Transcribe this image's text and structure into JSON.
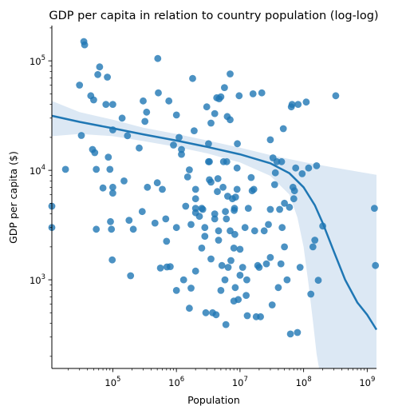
{
  "chart_data": {
    "type": "scatter",
    "title": "GDP per capita in relation to country population (log-log)",
    "xlabel": "Population",
    "ylabel": "GDP per capita ($)",
    "xscale": "log",
    "yscale": "log",
    "xlim": [
      11000,
      1400000000
    ],
    "ylim": [
      155,
      210000
    ],
    "grid": false,
    "point_color": "#1f77b4",
    "line_color": "#1f77b4",
    "band_color": "#dce8f4",
    "x_ticks": [
      {
        "base": "10",
        "exp": "5",
        "value": 100000
      },
      {
        "base": "10",
        "exp": "6",
        "value": 1000000
      },
      {
        "base": "10",
        "exp": "7",
        "value": 10000000
      },
      {
        "base": "10",
        "exp": "8",
        "value": 100000000
      },
      {
        "base": "10",
        "exp": "9",
        "value": 1000000000
      }
    ],
    "y_ticks": [
      {
        "base": "10",
        "exp": "3",
        "value": 1000
      },
      {
        "base": "10",
        "exp": "4",
        "value": 10000
      },
      {
        "base": "10",
        "exp": "5",
        "value": 100000
      }
    ],
    "points": [
      [
        11000,
        3000
      ],
      [
        11000,
        4700
      ],
      [
        18000,
        10200
      ],
      [
        30000,
        60000
      ],
      [
        32000,
        20800
      ],
      [
        35000,
        150000
      ],
      [
        36000,
        140000
      ],
      [
        45000,
        48000
      ],
      [
        48000,
        15500
      ],
      [
        50000,
        44000
      ],
      [
        52000,
        14500
      ],
      [
        55000,
        10200
      ],
      [
        55000,
        2900
      ],
      [
        58000,
        75000
      ],
      [
        62000,
        88000
      ],
      [
        70000,
        6900
      ],
      [
        78000,
        40000
      ],
      [
        82000,
        71000
      ],
      [
        85000,
        13200
      ],
      [
        90000,
        10200
      ],
      [
        92000,
        3400
      ],
      [
        95000,
        2900
      ],
      [
        98000,
        1520
      ],
      [
        100000,
        7000
      ],
      [
        100000,
        6200
      ],
      [
        100000,
        23400
      ],
      [
        100000,
        40000
      ],
      [
        140000,
        30000
      ],
      [
        150000,
        8000
      ],
      [
        170000,
        20700
      ],
      [
        180000,
        3500
      ],
      [
        190000,
        1090
      ],
      [
        210000,
        2900
      ],
      [
        260000,
        16000
      ],
      [
        290000,
        4200
      ],
      [
        300000,
        43000
      ],
      [
        320000,
        28000
      ],
      [
        340000,
        34000
      ],
      [
        350000,
        7000
      ],
      [
        460000,
        3300
      ],
      [
        500000,
        7700
      ],
      [
        510000,
        105000
      ],
      [
        520000,
        51000
      ],
      [
        560000,
        1280
      ],
      [
        600000,
        6700
      ],
      [
        680000,
        3600
      ],
      [
        700000,
        2250
      ],
      [
        710000,
        1310
      ],
      [
        760000,
        43000
      ],
      [
        800000,
        1320
      ],
      [
        900000,
        17000
      ],
      [
        1000000,
        32000
      ],
      [
        1000000,
        3000
      ],
      [
        1000000,
        800
      ],
      [
        1100000,
        20000
      ],
      [
        1200000,
        14000
      ],
      [
        1200000,
        15500
      ],
      [
        1300000,
        1000
      ],
      [
        1400000,
        4700
      ],
      [
        1500000,
        8700
      ],
      [
        1600000,
        550
      ],
      [
        1600000,
        10100
      ],
      [
        1700000,
        3200
      ],
      [
        1700000,
        840
      ],
      [
        1800000,
        69000
      ],
      [
        1900000,
        23000
      ],
      [
        2000000,
        4100
      ],
      [
        2000000,
        4500
      ],
      [
        2000000,
        6700
      ],
      [
        2000000,
        5500
      ],
      [
        2000000,
        1200
      ],
      [
        2300000,
        3800
      ],
      [
        2500000,
        1950
      ],
      [
        2500000,
        4500
      ],
      [
        2600000,
        4400
      ],
      [
        2800000,
        3000
      ],
      [
        2800000,
        2500
      ],
      [
        2900000,
        500
      ],
      [
        3000000,
        38000
      ],
      [
        3200000,
        12000
      ],
      [
        3200000,
        17500
      ],
      [
        3300000,
        12000
      ],
      [
        3300000,
        8200
      ],
      [
        3500000,
        1550
      ],
      [
        3500000,
        7800
      ],
      [
        3500000,
        27000
      ],
      [
        3700000,
        500
      ],
      [
        4000000,
        3600
      ],
      [
        4000000,
        33000
      ],
      [
        4000000,
        4000
      ],
      [
        4200000,
        480
      ],
      [
        4300000,
        46000
      ],
      [
        4400000,
        6400
      ],
      [
        4500000,
        8400
      ],
      [
        4600000,
        2800
      ],
      [
        4600000,
        2300
      ],
      [
        4700000,
        45000
      ],
      [
        5000000,
        47000
      ],
      [
        5000000,
        800
      ],
      [
        5200000,
        1350
      ],
      [
        5400000,
        7000
      ],
      [
        5500000,
        12000
      ],
      [
        5700000,
        57000
      ],
      [
        5800000,
        1000
      ],
      [
        5900000,
        4200
      ],
      [
        6000000,
        390
      ],
      [
        6100000,
        3600
      ],
      [
        6200000,
        12000
      ],
      [
        6300000,
        31000
      ],
      [
        6400000,
        5800
      ],
      [
        6500000,
        1300
      ],
      [
        7000000,
        29000
      ],
      [
        7000000,
        76000
      ],
      [
        7000000,
        2800
      ],
      [
        7200000,
        1500
      ],
      [
        7600000,
        5500
      ],
      [
        8000000,
        1950
      ],
      [
        8000000,
        640
      ],
      [
        8100000,
        4300
      ],
      [
        8200000,
        4500
      ],
      [
        8300000,
        2600
      ],
      [
        8400000,
        850
      ],
      [
        8500000,
        5700
      ],
      [
        9000000,
        10500
      ],
      [
        9000000,
        6700
      ],
      [
        9100000,
        17500
      ],
      [
        9400000,
        660
      ],
      [
        9700000,
        48000
      ],
      [
        10000000,
        1900
      ],
      [
        10000000,
        1100
      ],
      [
        11000000,
        1300
      ],
      [
        12000000,
        3000
      ],
      [
        12500000,
        720
      ],
      [
        12800000,
        1000
      ],
      [
        13000000,
        470
      ],
      [
        13500000,
        4500
      ],
      [
        15000000,
        8600
      ],
      [
        15500000,
        6500
      ],
      [
        16000000,
        50000
      ],
      [
        16500000,
        6700
      ],
      [
        17000000,
        2800
      ],
      [
        18000000,
        460
      ],
      [
        19000000,
        1350
      ],
      [
        20000000,
        1300
      ],
      [
        21000000,
        460
      ],
      [
        22000000,
        51000
      ],
      [
        24000000,
        2800
      ],
      [
        26000000,
        1400
      ],
      [
        28000000,
        3200
      ],
      [
        30000000,
        4400
      ],
      [
        30000000,
        1600
      ],
      [
        30000000,
        19000
      ],
      [
        32000000,
        590
      ],
      [
        33000000,
        13000
      ],
      [
        35000000,
        7400
      ],
      [
        36000000,
        9500
      ],
      [
        38000000,
        12000
      ],
      [
        40000000,
        850
      ],
      [
        42000000,
        4400
      ],
      [
        44000000,
        1400
      ],
      [
        45000000,
        12000
      ],
      [
        46000000,
        3000
      ],
      [
        48000000,
        24000
      ],
      [
        50000000,
        5000
      ],
      [
        50000000,
        2000
      ],
      [
        55000000,
        1000
      ],
      [
        60000000,
        4600
      ],
      [
        62000000,
        320
      ],
      [
        64000000,
        38000
      ],
      [
        66000000,
        40000
      ],
      [
        68000000,
        7000
      ],
      [
        70000000,
        5500
      ],
      [
        72000000,
        6500
      ],
      [
        75000000,
        10500
      ],
      [
        80000000,
        330
      ],
      [
        82000000,
        40000
      ],
      [
        88000000,
        1300
      ],
      [
        95000000,
        9300
      ],
      [
        110000000,
        42000
      ],
      [
        120000000,
        10500
      ],
      [
        130000000,
        740
      ],
      [
        140000000,
        2000
      ],
      [
        150000000,
        2300
      ],
      [
        160000000,
        11000
      ],
      [
        170000000,
        990
      ],
      [
        200000000,
        3100
      ],
      [
        320000000,
        48000
      ],
      [
        1300000000,
        4500
      ],
      [
        1350000000,
        1350
      ]
    ],
    "fit_line": [
      [
        11000,
        31500
      ],
      [
        30000,
        27700
      ],
      [
        100000,
        24200
      ],
      [
        300000,
        21300
      ],
      [
        1000000,
        18700
      ],
      [
        3000000,
        16400
      ],
      [
        10000000,
        14000
      ],
      [
        30000000,
        11600
      ],
      [
        60000000,
        9400
      ],
      [
        100000000,
        7000
      ],
      [
        150000000,
        4800
      ],
      [
        200000000,
        3300
      ],
      [
        300000000,
        1800
      ],
      [
        450000000,
        1000
      ],
      [
        700000000,
        620
      ],
      [
        1000000000,
        480
      ],
      [
        1400000000,
        350
      ]
    ],
    "ci_upper": [
      [
        11000,
        43000
      ],
      [
        30000,
        34000
      ],
      [
        100000,
        29000
      ],
      [
        300000,
        24500
      ],
      [
        1000000,
        21500
      ],
      [
        3000000,
        18800
      ],
      [
        10000000,
        16100
      ],
      [
        30000000,
        13800
      ],
      [
        100000000,
        11900
      ],
      [
        300000000,
        10600
      ],
      [
        1000000000,
        9400
      ],
      [
        1400000000,
        9100
      ]
    ],
    "ci_lower": [
      [
        11000,
        20500
      ],
      [
        30000,
        21500
      ],
      [
        100000,
        20500
      ],
      [
        300000,
        18500
      ],
      [
        1000000,
        16400
      ],
      [
        3000000,
        14300
      ],
      [
        10000000,
        11800
      ],
      [
        30000000,
        8900
      ],
      [
        60000000,
        6000
      ],
      [
        80000000,
        3700
      ],
      [
        100000000,
        2000
      ],
      [
        120000000,
        900
      ],
      [
        140000000,
        420
      ],
      [
        160000000,
        210
      ],
      [
        175000000,
        155
      ],
      [
        1400000000,
        155
      ]
    ]
  }
}
